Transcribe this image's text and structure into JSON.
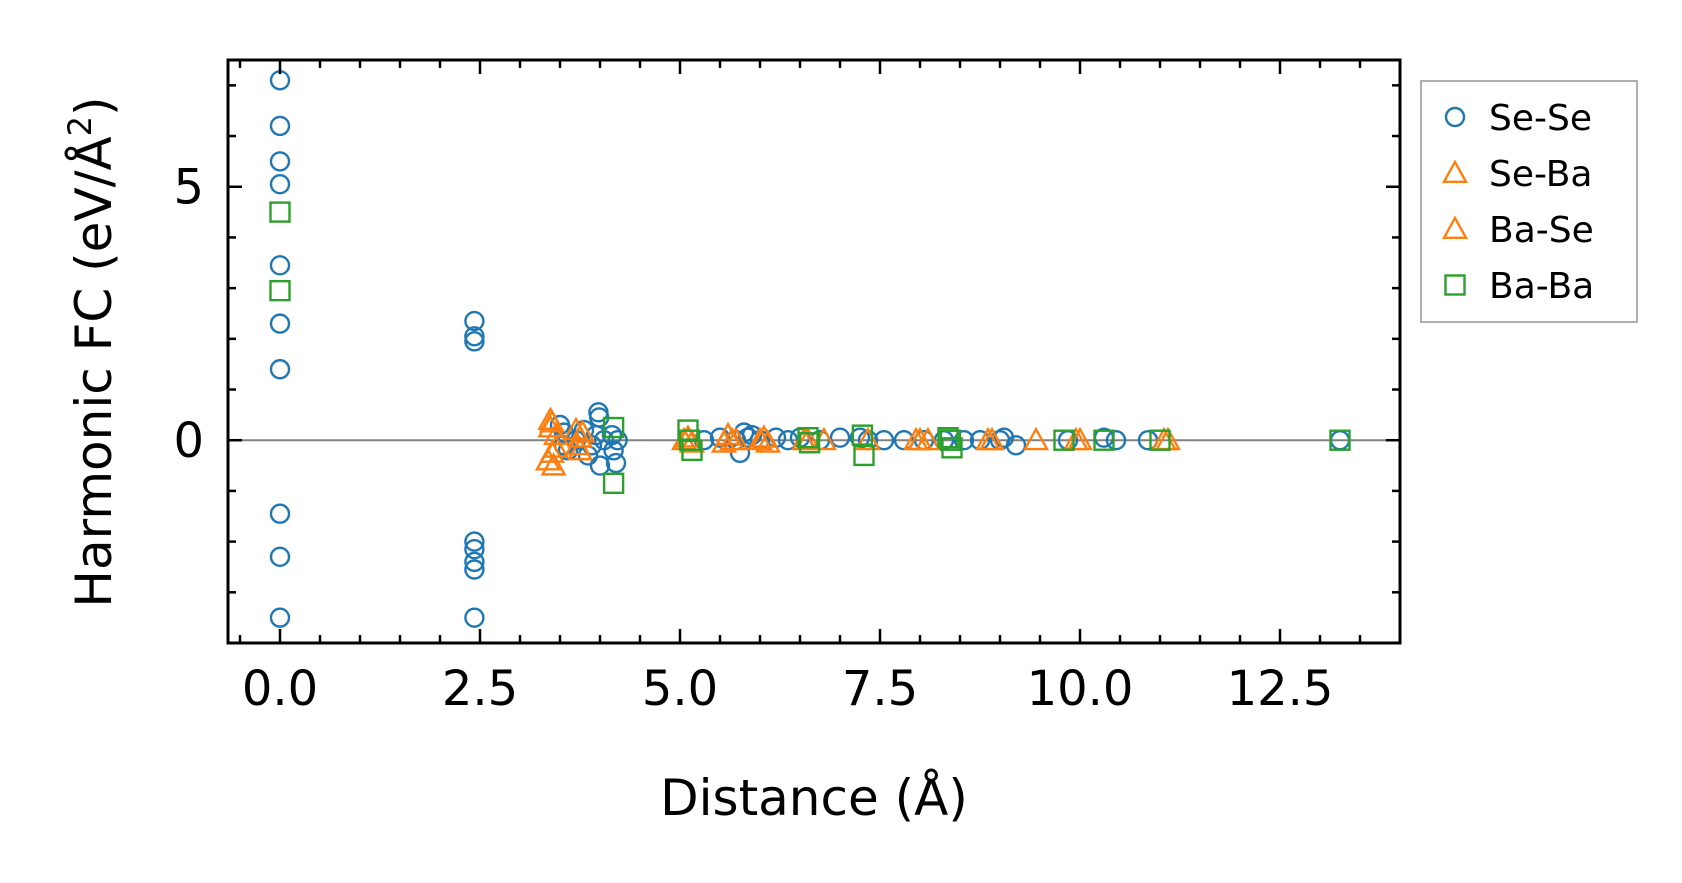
{
  "chart_data": {
    "type": "scatter",
    "title": "",
    "xlabel": "Distance (Å)",
    "ylabel_main": "Harmonic FC (eV/Å",
    "ylabel_sup": "2",
    "ylabel_close": ")",
    "xlim": [
      -0.65,
      14.0
    ],
    "ylim": [
      -4.0,
      7.5
    ],
    "xticks": [
      0.0,
      2.5,
      5.0,
      7.5,
      10.0,
      12.5
    ],
    "xtick_labels": [
      "0.0",
      "2.5",
      "5.0",
      "7.5",
      "10.0",
      "12.5"
    ],
    "yticks": [
      0,
      5
    ],
    "ytick_labels": [
      "0",
      "5"
    ],
    "zero_line": true,
    "legend_position": "outside-right",
    "series": [
      {
        "name": "Se-Se",
        "marker": "circle",
        "color": "#1f77b4",
        "filled": false,
        "points": [
          [
            0.0,
            7.1
          ],
          [
            0.0,
            6.2
          ],
          [
            0.0,
            5.5
          ],
          [
            0.0,
            5.05
          ],
          [
            0.0,
            3.45
          ],
          [
            0.0,
            2.3
          ],
          [
            0.0,
            1.4
          ],
          [
            0.0,
            -1.45
          ],
          [
            0.0,
            -2.3
          ],
          [
            0.0,
            -3.5
          ],
          [
            2.43,
            2.35
          ],
          [
            2.43,
            2.05
          ],
          [
            2.43,
            1.95
          ],
          [
            2.43,
            -2.0
          ],
          [
            2.43,
            -2.15
          ],
          [
            2.43,
            -2.4
          ],
          [
            2.43,
            -2.55
          ],
          [
            2.43,
            -3.5
          ],
          [
            3.5,
            0.3
          ],
          [
            3.55,
            0.15
          ],
          [
            3.55,
            -0.1
          ],
          [
            3.6,
            -0.2
          ],
          [
            3.7,
            0.0
          ],
          [
            3.8,
            0.2
          ],
          [
            3.85,
            -0.3
          ],
          [
            3.9,
            -0.1
          ],
          [
            3.95,
            0.1
          ],
          [
            3.98,
            0.55
          ],
          [
            3.99,
            0.45
          ],
          [
            4.0,
            -0.5
          ],
          [
            4.05,
            0.0
          ],
          [
            4.15,
            0.1
          ],
          [
            4.17,
            -0.2
          ],
          [
            4.2,
            -0.45
          ],
          [
            4.22,
            0.0
          ],
          [
            5.3,
            0.0
          ],
          [
            5.5,
            0.05
          ],
          [
            5.7,
            0.0
          ],
          [
            5.75,
            -0.25
          ],
          [
            5.8,
            0.15
          ],
          [
            5.85,
            0.05
          ],
          [
            5.9,
            0.1
          ],
          [
            6.0,
            0.0
          ],
          [
            6.2,
            0.05
          ],
          [
            6.35,
            0.0
          ],
          [
            6.5,
            0.05
          ],
          [
            6.75,
            0.0
          ],
          [
            7.0,
            0.05
          ],
          [
            7.25,
            0.05
          ],
          [
            7.35,
            0.0
          ],
          [
            7.55,
            0.0
          ],
          [
            7.8,
            0.0
          ],
          [
            8.05,
            0.0
          ],
          [
            8.3,
            0.0
          ],
          [
            8.55,
            0.0
          ],
          [
            8.75,
            0.0
          ],
          [
            9.0,
            0.0
          ],
          [
            9.05,
            0.05
          ],
          [
            9.2,
            -0.1
          ],
          [
            9.85,
            0.0
          ],
          [
            10.3,
            0.05
          ],
          [
            10.45,
            0.0
          ],
          [
            10.85,
            0.0
          ],
          [
            13.25,
            0.0
          ]
        ]
      },
      {
        "name": "Se-Ba",
        "marker": "triangle",
        "color": "#ff7f0e",
        "filled": false,
        "points": [
          [
            3.38,
            0.4
          ],
          [
            3.38,
            0.25
          ],
          [
            3.4,
            -0.25
          ],
          [
            3.42,
            -0.5
          ],
          [
            3.45,
            0.1
          ],
          [
            3.7,
            0.2
          ],
          [
            3.72,
            -0.1
          ],
          [
            3.75,
            0.05
          ],
          [
            5.05,
            0.0
          ],
          [
            5.1,
            0.05
          ],
          [
            5.6,
            0.1
          ],
          [
            5.65,
            0.0
          ],
          [
            6.05,
            0.05
          ],
          [
            6.1,
            -0.05
          ],
          [
            6.6,
            0.0
          ],
          [
            6.8,
            0.0
          ],
          [
            8.0,
            0.0
          ],
          [
            8.1,
            0.0
          ],
          [
            8.9,
            0.0
          ],
          [
            9.45,
            0.0
          ],
          [
            10.0,
            0.0
          ],
          [
            11.1,
            0.0
          ]
        ]
      },
      {
        "name": "Ba-Se",
        "marker": "triangle",
        "color": "#ff7f0e",
        "filled": false,
        "points": [
          [
            3.35,
            -0.4
          ],
          [
            3.4,
            0.35
          ],
          [
            3.45,
            -0.15
          ],
          [
            3.75,
            -0.2
          ],
          [
            3.78,
            0.15
          ],
          [
            5.15,
            -0.05
          ],
          [
            5.55,
            -0.05
          ],
          [
            5.7,
            0.0
          ],
          [
            6.0,
            0.0
          ],
          [
            6.55,
            0.0
          ],
          [
            7.35,
            0.0
          ],
          [
            7.95,
            0.0
          ],
          [
            8.85,
            0.0
          ],
          [
            9.95,
            0.0
          ],
          [
            11.05,
            0.0
          ]
        ]
      },
      {
        "name": "Ba-Ba",
        "marker": "square",
        "color": "#2ca02c",
        "filled": false,
        "points": [
          [
            0.0,
            4.5
          ],
          [
            0.0,
            2.95
          ],
          [
            4.17,
            0.25
          ],
          [
            4.17,
            -0.85
          ],
          [
            5.1,
            0.2
          ],
          [
            5.12,
            0.0
          ],
          [
            5.15,
            -0.2
          ],
          [
            6.6,
            0.05
          ],
          [
            6.62,
            -0.05
          ],
          [
            7.28,
            0.1
          ],
          [
            7.3,
            -0.3
          ],
          [
            8.35,
            0.05
          ],
          [
            8.38,
            0.0
          ],
          [
            8.4,
            -0.15
          ],
          [
            9.8,
            0.0
          ],
          [
            10.3,
            0.0
          ],
          [
            11.0,
            0.0
          ],
          [
            13.25,
            0.0
          ]
        ]
      }
    ]
  }
}
